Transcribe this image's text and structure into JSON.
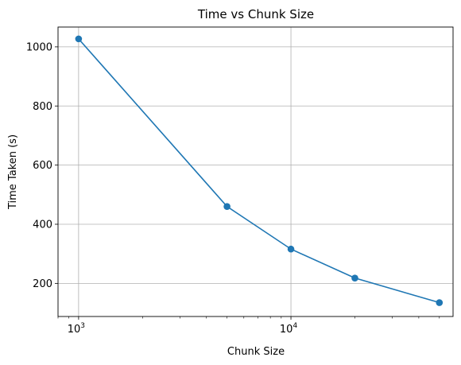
{
  "chart_data": {
    "type": "line",
    "title": "Time vs Chunk Size",
    "xlabel": "Chunk Size",
    "ylabel": "Time Taken (s)",
    "x_scale": "log",
    "x": [
      1000,
      5000,
      10000,
      20000,
      50000
    ],
    "series": [
      {
        "values": [
          1027,
          460,
          316,
          218,
          135
        ],
        "color": "#1f77b4",
        "marker": "circle"
      }
    ],
    "xlim": [
      800,
      58000
    ],
    "ylim": [
      88,
      1067
    ],
    "y_ticks": [
      200,
      400,
      600,
      800,
      1000
    ],
    "y_tick_labels": [
      "200",
      "400",
      "600",
      "800",
      "1000"
    ],
    "x_ticks_major": [
      1000,
      10000
    ],
    "x_tick_labels_major": [
      {
        "base": "10",
        "exp": "3"
      },
      {
        "base": "10",
        "exp": "4"
      }
    ],
    "grid": true,
    "legend": "none"
  }
}
